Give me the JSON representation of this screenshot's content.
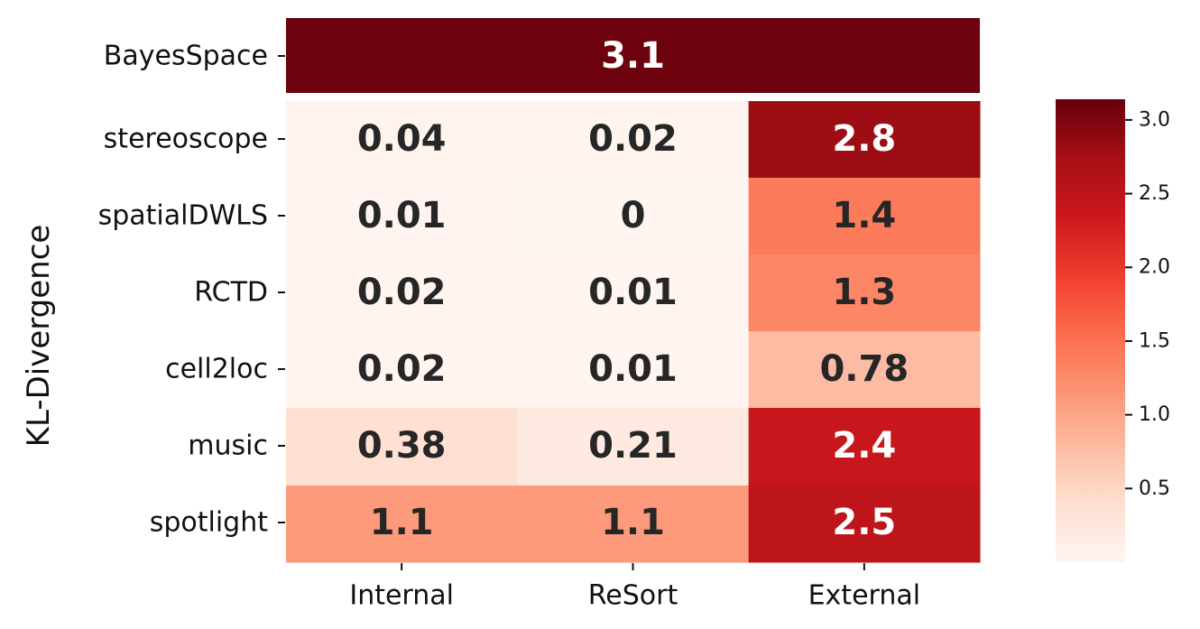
{
  "chart_data": {
    "type": "heatmap",
    "ylabel": "KL-Divergence",
    "rows": [
      "BayesSpace",
      "stereoscope",
      "spatialDWLS",
      "RCTD",
      "cell2loc",
      "music",
      "spotlight"
    ],
    "columns": [
      "Internal",
      "ReSort",
      "External"
    ],
    "merged_row": {
      "row": "BayesSpace",
      "value": 3.1,
      "label": "3.1"
    },
    "values": [
      [
        0.04,
        0.02,
        2.8
      ],
      [
        0.01,
        0,
        1.4
      ],
      [
        0.02,
        0.01,
        1.3
      ],
      [
        0.02,
        0.01,
        0.78
      ],
      [
        0.38,
        0.21,
        2.4
      ],
      [
        1.1,
        1.1,
        2.5
      ]
    ],
    "labels": [
      [
        "0.04",
        "0.02",
        "2.8"
      ],
      [
        "0.01",
        "0",
        "1.4"
      ],
      [
        "0.02",
        "0.01",
        "1.3"
      ],
      [
        "0.02",
        "0.01",
        "0.78"
      ],
      [
        "0.38",
        "0.21",
        "2.4"
      ],
      [
        "1.1",
        "1.1",
        "2.5"
      ]
    ],
    "colormap": "Reds",
    "colorbar": {
      "range": [
        0,
        3.14
      ],
      "ticks": [
        "0.5",
        "1.0",
        "1.5",
        "2.0",
        "2.5",
        "3.0"
      ],
      "tick_values": [
        0.5,
        1.0,
        1.5,
        2.0,
        2.5,
        3.0
      ]
    },
    "colors": {
      "low": "#fff5f0",
      "high": "#67000d",
      "text_dark": "#262626",
      "text_light": "#ffffff"
    }
  }
}
